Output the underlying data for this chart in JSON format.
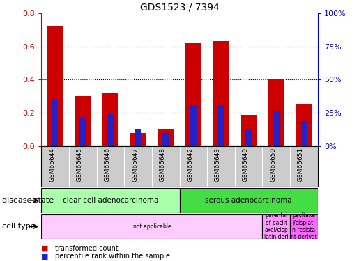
{
  "title": "GDS1523 / 7394",
  "samples": [
    "GSM65644",
    "GSM65645",
    "GSM65646",
    "GSM65647",
    "GSM65648",
    "GSM65642",
    "GSM65643",
    "GSM65649",
    "GSM65650",
    "GSM65651"
  ],
  "transformed_count": [
    0.72,
    0.3,
    0.32,
    0.08,
    0.1,
    0.62,
    0.63,
    0.19,
    0.4,
    0.25
  ],
  "percentile_rank_pct": [
    35,
    21,
    24,
    13,
    10,
    31,
    31,
    13,
    26,
    19
  ],
  "bar_color_red": "#cc0000",
  "bar_color_blue": "#2222cc",
  "ylim": [
    0,
    0.8
  ],
  "y2lim": [
    0,
    100
  ],
  "yticks": [
    0,
    0.2,
    0.4,
    0.6,
    0.8
  ],
  "y2ticks": [
    0,
    25,
    50,
    75,
    100
  ],
  "disease_state_groups": [
    {
      "label": "clear cell adenocarcinoma",
      "start": 0,
      "end": 5,
      "color": "#aaffaa"
    },
    {
      "label": "serous adenocarcinoma",
      "start": 5,
      "end": 10,
      "color": "#44dd44"
    }
  ],
  "cell_type_groups": [
    {
      "label": "not applicable",
      "start": 0,
      "end": 8,
      "color": "#ffccff"
    },
    {
      "label": "parental\nof paclit\naxel/cisp\nlatin deri",
      "start": 8,
      "end": 9,
      "color": "#ff99ff"
    },
    {
      "label": "pacltaxe\nl/cisplati\nn resista\nnt derivat",
      "start": 9,
      "end": 10,
      "color": "#ff66ff"
    }
  ],
  "tick_color_left": "#cc0000",
  "tick_color_right": "#0000cc",
  "red_bar_width": 0.55,
  "blue_bar_width": 0.22
}
